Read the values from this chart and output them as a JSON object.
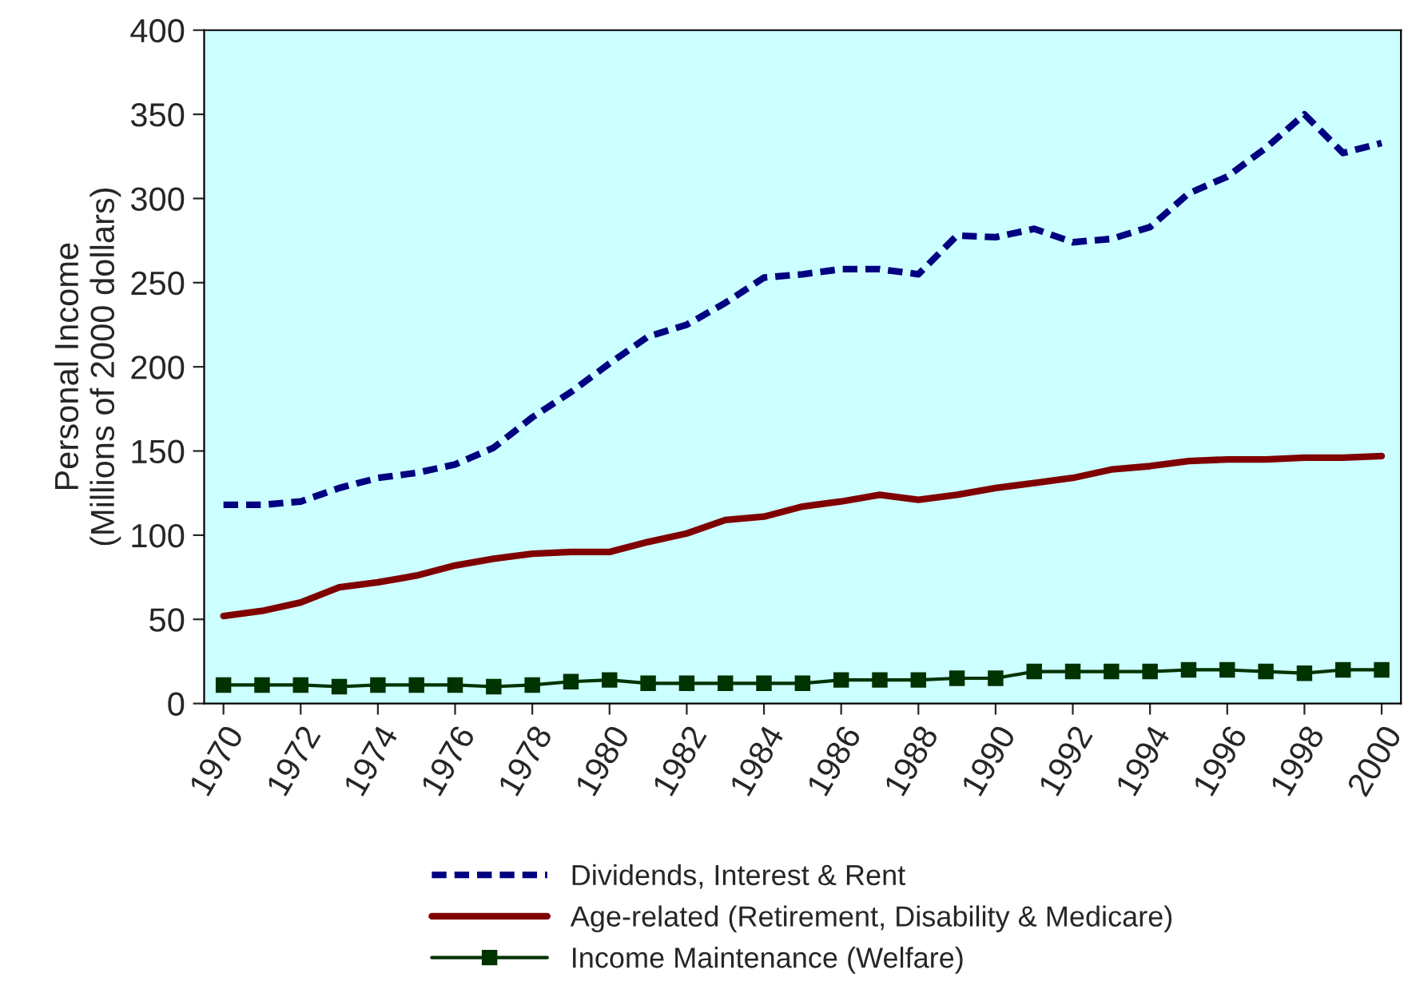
{
  "chart_data": {
    "type": "line",
    "ylabel": "Personal Income\n(Millions of 2000 dollars)",
    "x": [
      1970,
      1971,
      1972,
      1973,
      1974,
      1975,
      1976,
      1977,
      1978,
      1979,
      1980,
      1981,
      1982,
      1983,
      1984,
      1985,
      1986,
      1987,
      1988,
      1989,
      1990,
      1991,
      1992,
      1993,
      1994,
      1995,
      1996,
      1997,
      1998,
      1999,
      2000
    ],
    "series": [
      {
        "name": "Dividends, Interest & Rent",
        "color": "#000080",
        "line_style": "dashed",
        "marker": "none",
        "values": [
          118,
          118,
          120,
          128,
          134,
          137,
          142,
          152,
          170,
          185,
          202,
          218,
          225,
          238,
          253,
          255,
          258,
          258,
          255,
          278,
          277,
          282,
          274,
          276,
          283,
          303,
          313,
          330,
          350,
          327,
          333
        ]
      },
      {
        "name": "Age-related (Retirement, Disability & Medicare)",
        "color": "#800000",
        "line_style": "solid",
        "marker": "none",
        "values": [
          52,
          55,
          60,
          69,
          72,
          76,
          82,
          86,
          89,
          90,
          90,
          96,
          101,
          109,
          111,
          117,
          120,
          124,
          121,
          124,
          128,
          131,
          134,
          139,
          141,
          144,
          145,
          145,
          146,
          146,
          147
        ]
      },
      {
        "name": "Income Maintenance (Welfare)",
        "color": "#003300",
        "line_style": "solid",
        "marker": "square",
        "values": [
          11,
          11,
          11,
          10,
          11,
          11,
          11,
          10,
          11,
          13,
          14,
          12,
          12,
          12,
          12,
          12,
          14,
          14,
          14,
          15,
          15,
          19,
          19,
          19,
          19,
          20,
          20,
          19,
          18,
          20,
          20
        ]
      }
    ],
    "xlim": [
      1969.5,
      2000.5
    ],
    "xticks": [
      1970,
      1972,
      1974,
      1976,
      1978,
      1980,
      1982,
      1984,
      1986,
      1988,
      1990,
      1992,
      1994,
      1996,
      1998,
      2000
    ],
    "ylim": [
      0,
      400
    ],
    "yticks": [
      0,
      50,
      100,
      150,
      200,
      250,
      300,
      350,
      400
    ],
    "grid": false,
    "legend": "bottom"
  }
}
